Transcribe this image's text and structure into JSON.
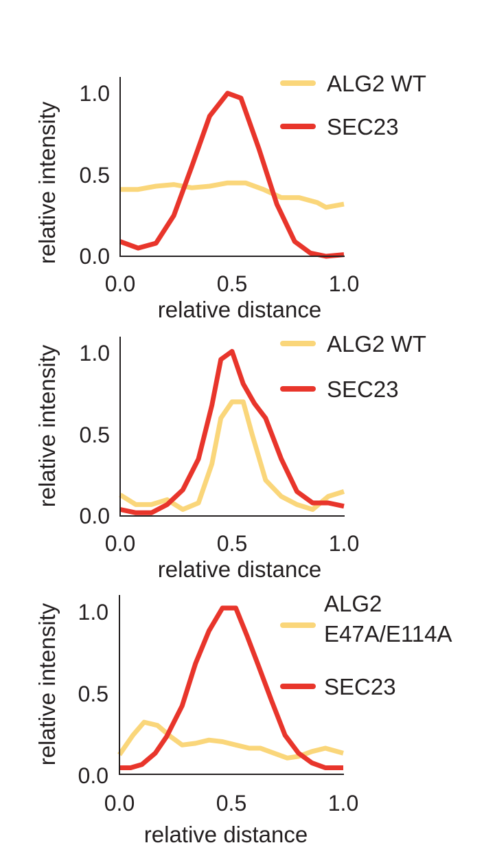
{
  "colors": {
    "alg2": "#fad67a",
    "sec23": "#e8352b",
    "axis": "#231f20"
  },
  "chart_data": [
    {
      "type": "line",
      "xlabel": "relative distance",
      "ylabel": "relative intensity",
      "xlim": [
        0,
        1
      ],
      "ylim": [
        0,
        1.1
      ],
      "xticks": [
        "0.0",
        "0.5",
        "1.0"
      ],
      "yticks": [
        "0.0",
        "0.5",
        "1.0"
      ],
      "legend_position": "top-right",
      "series": [
        {
          "name": "ALG2 WT",
          "color": "#fad67a",
          "x": [
            0,
            0.08,
            0.16,
            0.24,
            0.32,
            0.4,
            0.48,
            0.56,
            0.64,
            0.72,
            0.8,
            0.88,
            0.92,
            1.0
          ],
          "y": [
            0.41,
            0.41,
            0.43,
            0.44,
            0.42,
            0.43,
            0.45,
            0.45,
            0.41,
            0.36,
            0.36,
            0.33,
            0.3,
            0.32
          ]
        },
        {
          "name": "SEC23",
          "color": "#e8352b",
          "x": [
            0,
            0.08,
            0.16,
            0.24,
            0.32,
            0.4,
            0.48,
            0.54,
            0.62,
            0.7,
            0.78,
            0.85,
            0.92,
            1.0
          ],
          "y": [
            0.09,
            0.05,
            0.08,
            0.25,
            0.55,
            0.86,
            1.0,
            0.97,
            0.66,
            0.32,
            0.09,
            0.02,
            0.0,
            0.01
          ]
        }
      ]
    },
    {
      "type": "line",
      "xlabel": "relative distance",
      "ylabel": "relative intensity",
      "xlim": [
        0,
        1
      ],
      "ylim": [
        0,
        1.1
      ],
      "xticks": [
        "0.0",
        "0.5",
        "1.0"
      ],
      "yticks": [
        "0.0",
        "0.5",
        "1.0"
      ],
      "legend_position": "top-right",
      "series": [
        {
          "name": "ALG2 WT",
          "color": "#fad67a",
          "x": [
            0,
            0.07,
            0.14,
            0.21,
            0.28,
            0.35,
            0.41,
            0.45,
            0.5,
            0.55,
            0.59,
            0.65,
            0.72,
            0.79,
            0.86,
            0.93,
            1.0
          ],
          "y": [
            0.13,
            0.07,
            0.07,
            0.1,
            0.04,
            0.08,
            0.32,
            0.6,
            0.7,
            0.7,
            0.5,
            0.22,
            0.12,
            0.07,
            0.04,
            0.12,
            0.15
          ]
        },
        {
          "name": "SEC23",
          "color": "#e8352b",
          "x": [
            0,
            0.07,
            0.14,
            0.21,
            0.28,
            0.35,
            0.41,
            0.45,
            0.5,
            0.55,
            0.6,
            0.65,
            0.72,
            0.79,
            0.86,
            0.93,
            1.0
          ],
          "y": [
            0.04,
            0.02,
            0.02,
            0.07,
            0.16,
            0.35,
            0.68,
            0.96,
            1.01,
            0.81,
            0.69,
            0.6,
            0.35,
            0.15,
            0.08,
            0.08,
            0.06
          ]
        }
      ]
    },
    {
      "type": "line",
      "xlabel": "relative distance",
      "ylabel": "relative intensity",
      "xlim": [
        0,
        1
      ],
      "ylim": [
        0,
        1.1
      ],
      "xticks": [
        "0.0",
        "0.5",
        "1.0"
      ],
      "yticks": [
        "0.0",
        "0.5",
        "1.0"
      ],
      "legend_position": "top-right",
      "series": [
        {
          "name": "ALG2\nE47A/E114A",
          "color": "#fad67a",
          "x": [
            0,
            0.06,
            0.11,
            0.17,
            0.23,
            0.28,
            0.34,
            0.4,
            0.46,
            0.52,
            0.58,
            0.63,
            0.69,
            0.75,
            0.8,
            0.86,
            0.92,
            1.0
          ],
          "y": [
            0.12,
            0.24,
            0.32,
            0.3,
            0.23,
            0.18,
            0.19,
            0.21,
            0.2,
            0.18,
            0.16,
            0.16,
            0.13,
            0.1,
            0.11,
            0.14,
            0.16,
            0.13
          ]
        },
        {
          "name": "SEC23",
          "color": "#e8352b",
          "x": [
            0,
            0.05,
            0.1,
            0.16,
            0.21,
            0.28,
            0.34,
            0.4,
            0.46,
            0.52,
            0.57,
            0.62,
            0.68,
            0.74,
            0.8,
            0.86,
            0.92,
            1.0
          ],
          "y": [
            0.04,
            0.04,
            0.06,
            0.13,
            0.23,
            0.42,
            0.68,
            0.88,
            1.02,
            1.02,
            0.85,
            0.67,
            0.45,
            0.24,
            0.13,
            0.07,
            0.04,
            0.04
          ]
        }
      ]
    }
  ]
}
